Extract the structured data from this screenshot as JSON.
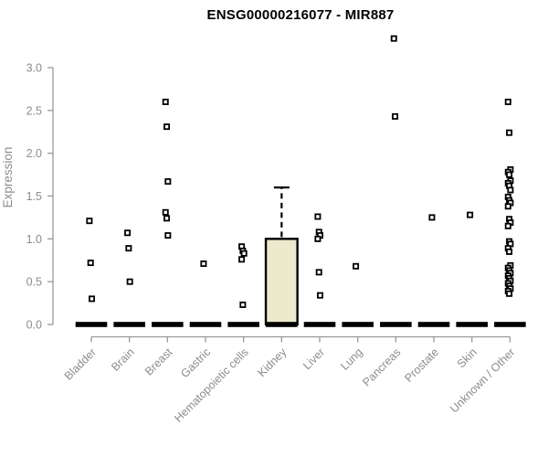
{
  "chart_data": {
    "type": "boxplot",
    "title": "ENSG00000216077 - MIR887",
    "xlabel": "",
    "ylabel": "Expression",
    "ylim": [
      0.0,
      3.0
    ],
    "yticks": [
      0.0,
      0.5,
      1.0,
      1.5,
      2.0,
      2.5,
      3.0
    ],
    "grid": false,
    "legend": null,
    "categories": [
      "Bladder",
      "Brain",
      "Breast",
      "Gastric",
      "Hematopoietic cells",
      "Kidney",
      "Liver",
      "Lung",
      "Pancreas",
      "Prostate",
      "Skin",
      "Unknown / Other"
    ],
    "boxes": [
      {
        "category": "Bladder",
        "median": 0,
        "q1": 0,
        "q3": 0,
        "whisker_low": 0,
        "whisker_high": 0
      },
      {
        "category": "Brain",
        "median": 0,
        "q1": 0,
        "q3": 0,
        "whisker_low": 0,
        "whisker_high": 0
      },
      {
        "category": "Breast",
        "median": 0,
        "q1": 0,
        "q3": 0,
        "whisker_low": 0,
        "whisker_high": 0
      },
      {
        "category": "Gastric",
        "median": 0,
        "q1": 0,
        "q3": 0,
        "whisker_low": 0,
        "whisker_high": 0
      },
      {
        "category": "Hematopoietic cells",
        "median": 0,
        "q1": 0,
        "q3": 0,
        "whisker_low": 0,
        "whisker_high": 0
      },
      {
        "category": "Kidney",
        "median": 0,
        "q1": 0,
        "q3": 1.0,
        "whisker_low": 0,
        "whisker_high": 1.6
      },
      {
        "category": "Liver",
        "median": 0,
        "q1": 0,
        "q3": 0,
        "whisker_low": 0,
        "whisker_high": 0
      },
      {
        "category": "Lung",
        "median": 0,
        "q1": 0,
        "q3": 0,
        "whisker_low": 0,
        "whisker_high": 0
      },
      {
        "category": "Pancreas",
        "median": 0,
        "q1": 0,
        "q3": 0,
        "whisker_low": 0,
        "whisker_high": 0
      },
      {
        "category": "Prostate",
        "median": 0,
        "q1": 0,
        "q3": 0,
        "whisker_low": 0,
        "whisker_high": 0
      },
      {
        "category": "Skin",
        "median": 0,
        "q1": 0,
        "q3": 0,
        "whisker_low": 0,
        "whisker_high": 0
      },
      {
        "category": "Unknown / Other",
        "median": 0,
        "q1": 0,
        "q3": 0,
        "whisker_low": 0,
        "whisker_high": 0
      }
    ],
    "points": [
      [
        1.21,
        0.72,
        0.3
      ],
      [
        1.07,
        0.89,
        0.5
      ],
      [
        2.6,
        2.31,
        1.67,
        1.31,
        1.24,
        1.04
      ],
      [
        0.71
      ],
      [
        0.91,
        0.86,
        0.83,
        0.76,
        0.23
      ],
      [],
      [
        1.26,
        1.08,
        1.04,
        1.0,
        0.61,
        0.34
      ],
      [
        0.68
      ],
      [
        3.34,
        2.43
      ],
      [
        1.25
      ],
      [
        1.28
      ],
      [
        2.6,
        2.24,
        1.81,
        1.78,
        1.75,
        1.68,
        1.65,
        1.62,
        1.57,
        1.49,
        1.45,
        1.42,
        1.38,
        1.23,
        1.19,
        1.15,
        0.97,
        0.94,
        0.89,
        0.85,
        0.69,
        0.66,
        0.63,
        0.6,
        0.57,
        0.54,
        0.51,
        0.48,
        0.45,
        0.42,
        0.39,
        0.36
      ]
    ],
    "colors": {
      "box_fill": "#ece9cd",
      "box_border": "#000000",
      "point_stroke": "#000000",
      "point_fill": "#ffffff",
      "median_bar": "#000000",
      "axis_line": "#999999",
      "tick_label": "#8c8c8c",
      "title": "#000000"
    }
  }
}
